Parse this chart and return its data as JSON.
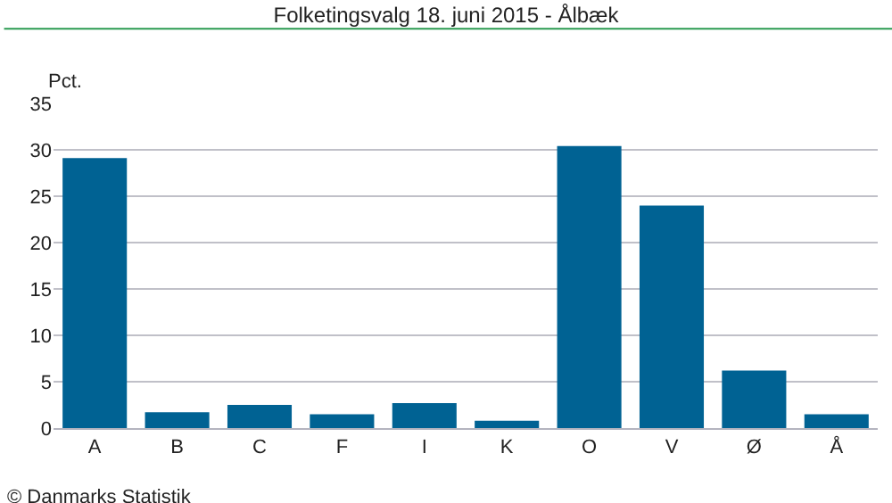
{
  "chart_data": {
    "type": "bar",
    "title": "Folketingsvalg 18. juni 2015 - Ålbæk",
    "ylabel": "Pct.",
    "categories": [
      "A",
      "B",
      "C",
      "F",
      "I",
      "K",
      "O",
      "V",
      "Ø",
      "Å"
    ],
    "values": [
      29.1,
      1.7,
      2.5,
      1.5,
      2.7,
      0.8,
      30.4,
      24.0,
      6.2,
      1.5
    ],
    "color": "#006293",
    "ylim": [
      0,
      35
    ],
    "yticks": [
      0,
      5,
      10,
      15,
      20,
      25,
      30,
      35
    ],
    "grid": "y",
    "annotations": [
      "© Danmarks Statistik"
    ]
  }
}
